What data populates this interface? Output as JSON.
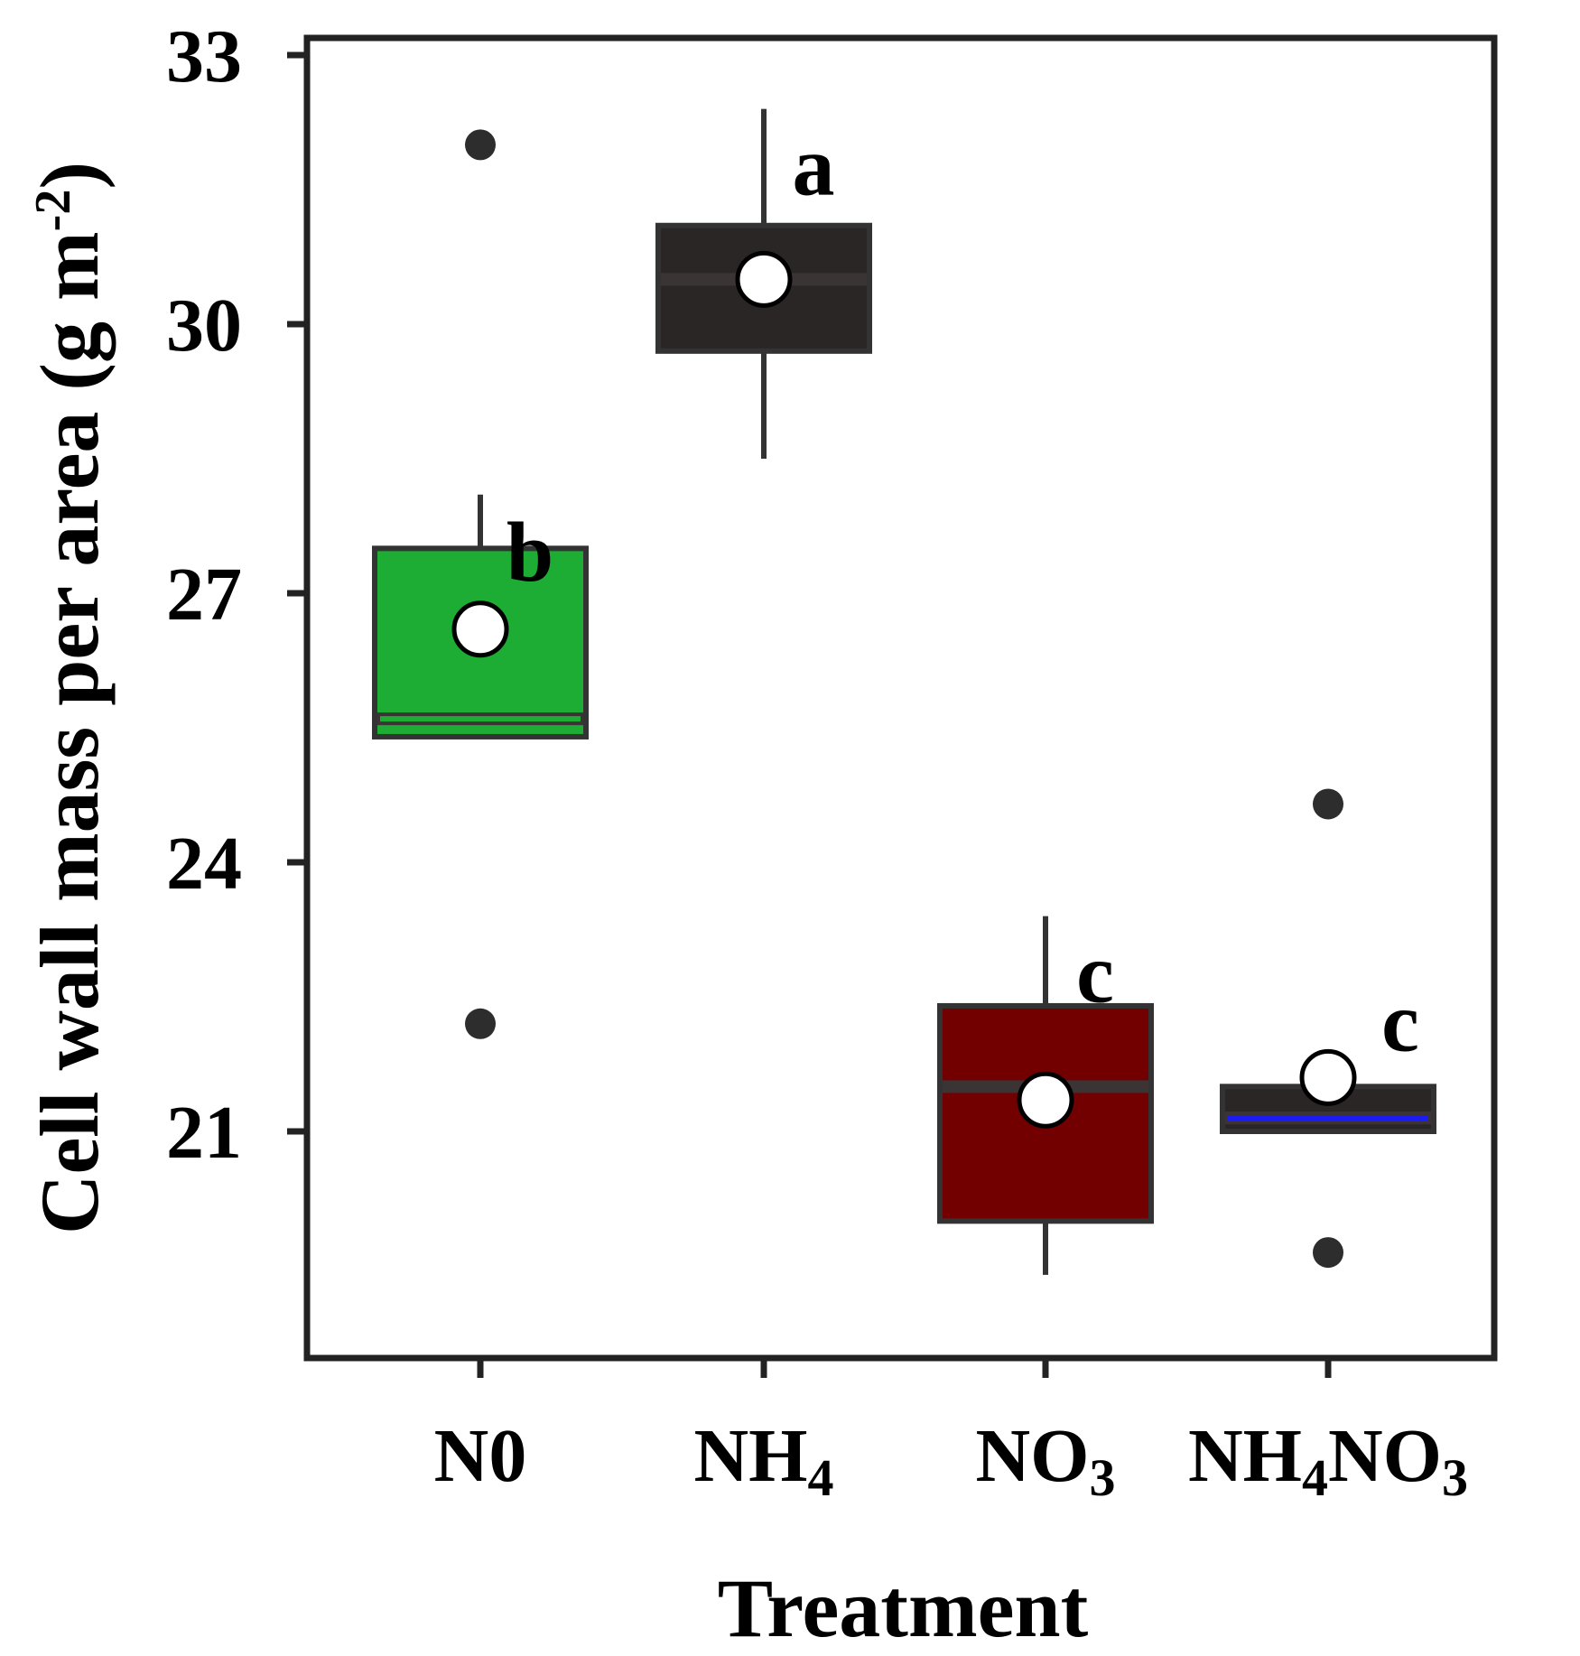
{
  "chart_data": {
    "type": "box",
    "xlabel": "Treatment",
    "ylabel": "Cell wall mass per area (g m",
    "ylabel_superscript": "-2",
    "ylabel_suffix": ")",
    "ylim": [
      17.5,
      33
    ],
    "yticks": [
      21,
      24,
      27,
      30,
      33
    ],
    "grid": false,
    "categories": [
      {
        "name": "N0",
        "sub": "",
        "name2": "",
        "sub2": ""
      },
      {
        "name": "NH",
        "sub": "4",
        "name2": "",
        "sub2": ""
      },
      {
        "name": "NO",
        "sub": "3",
        "name2": "",
        "sub2": ""
      },
      {
        "name": "NH",
        "sub": "4",
        "name2": "NO",
        "sub2": "3"
      }
    ],
    "boxes": [
      {
        "q1": 25.4,
        "median": 25.6,
        "q3": 27.5,
        "whisker_low": 25.4,
        "whisker_high": 28.1,
        "mean": 26.6,
        "outliers": [
          32.0,
          22.2
        ],
        "letter": "b",
        "fill": "#1dac34",
        "median_color": "#1dac34"
      },
      {
        "q1": 29.7,
        "median": 30.5,
        "q3": 31.1,
        "whisker_low": 28.5,
        "whisker_high": 32.4,
        "mean": 30.5,
        "outliers": [],
        "letter": "a",
        "fill": "#2b2626",
        "median_color": "#3a3434"
      },
      {
        "q1": 20.0,
        "median": 21.5,
        "q3": 22.4,
        "whisker_low": 19.4,
        "whisker_high": 23.4,
        "mean": 21.35,
        "outliers": [],
        "letter": "c",
        "fill": "#720000",
        "median_color": "#3a3434"
      },
      {
        "q1": 21.0,
        "median": 21.15,
        "q3": 21.5,
        "whisker_low": 21.0,
        "whisker_high": 21.5,
        "mean": 21.6,
        "outliers": [
          24.65,
          19.65
        ],
        "letter": "c",
        "fill": "#2b2626",
        "median_color": "#1c1cf0"
      }
    ],
    "colors": {
      "frame": "#222222",
      "outline": "#333333",
      "outlier": "#2d2d2d",
      "mean": "#ffffff"
    }
  }
}
